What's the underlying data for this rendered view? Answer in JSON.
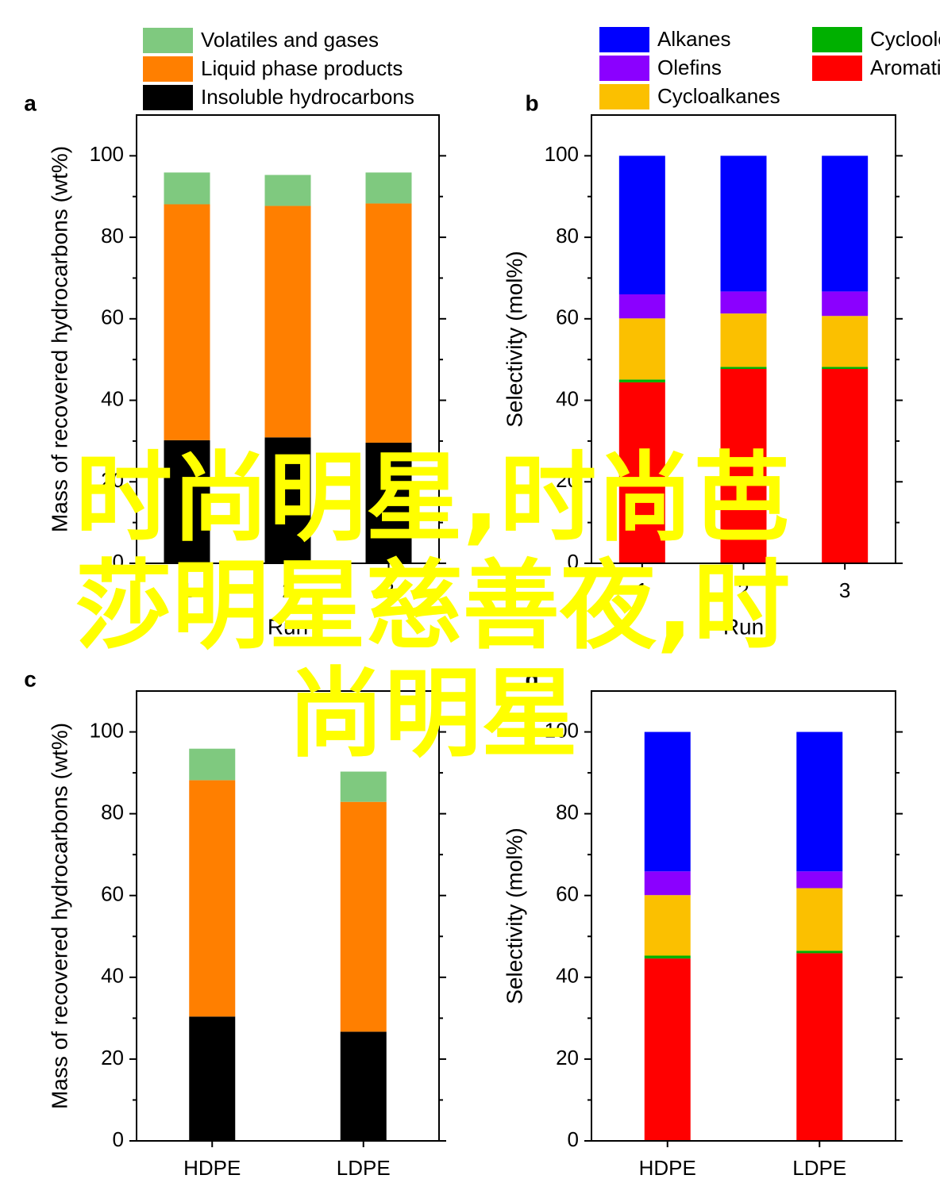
{
  "chart_data": [
    {
      "type": "bar",
      "stacked": true,
      "panel_label": "a",
      "ylabel": "Mass of recovered hydrocarbons (wt%)",
      "xlabel": "Run",
      "categories": [
        "1",
        "2",
        "3"
      ],
      "ylim": [
        0,
        110
      ],
      "yticks": [
        0,
        20,
        40,
        60,
        80,
        100
      ],
      "yminor": [
        10,
        30,
        50,
        70,
        90
      ],
      "legend": "top-left",
      "series": [
        {
          "name": "Insoluble hydrocarbons",
          "color": "#000000",
          "values": [
            30.2,
            30.9,
            29.6
          ]
        },
        {
          "name": "Liquid phase products",
          "color": "#ff7f00",
          "values": [
            57.9,
            56.8,
            58.7
          ]
        },
        {
          "name": "Volatiles and gases",
          "color": "#7fc97f",
          "values": [
            7.8,
            7.6,
            7.6
          ]
        }
      ]
    },
    {
      "type": "bar",
      "stacked": true,
      "panel_label": "b",
      "ylabel": "Selectivity (mol%)",
      "xlabel": "Run",
      "categories": [
        "1",
        "2",
        "3"
      ],
      "ylim": [
        0,
        110
      ],
      "yticks": [
        0,
        20,
        40,
        60,
        80,
        100
      ],
      "yminor": [
        10,
        30,
        50,
        70,
        90
      ],
      "legend": "top",
      "series": [
        {
          "name": "Aromatics",
          "color": "#ff0000",
          "values": [
            44.4,
            47.7,
            47.7
          ]
        },
        {
          "name": "Cycloolefins",
          "color": "#00b000",
          "values": [
            0.7,
            0.5,
            0.5
          ]
        },
        {
          "name": "Cycloalkanes",
          "color": "#fbc000",
          "values": [
            15.0,
            13.1,
            12.5
          ]
        },
        {
          "name": "Olefins",
          "color": "#8b00ff",
          "values": [
            5.9,
            5.4,
            6.0
          ]
        },
        {
          "name": "Alkanes",
          "color": "#0000ff",
          "values": [
            34.0,
            33.3,
            33.3
          ]
        }
      ]
    },
    {
      "type": "bar",
      "stacked": true,
      "panel_label": "c",
      "ylabel": "Mass of recovered hydrocarbons (wt%)",
      "categories": [
        "HDPE",
        "LDPE"
      ],
      "ylim": [
        0,
        110
      ],
      "yticks": [
        0,
        20,
        40,
        60,
        80,
        100
      ],
      "yminor": [
        10,
        30,
        50,
        70,
        90
      ],
      "series": [
        {
          "color": "#000000",
          "values": [
            30.4,
            26.7
          ]
        },
        {
          "color": "#ff7f00",
          "values": [
            57.8,
            56.2
          ]
        },
        {
          "color": "#7fc97f",
          "values": [
            7.7,
            7.4
          ]
        }
      ]
    },
    {
      "type": "bar",
      "stacked": true,
      "panel_label": "d",
      "ylabel": "Selectivity (mol%)",
      "categories": [
        "HDPE",
        "LDPE"
      ],
      "ylim": [
        0,
        110
      ],
      "yticks": [
        0,
        20,
        40,
        60,
        80,
        100
      ],
      "yminor": [
        10,
        30,
        50,
        70,
        90
      ],
      "series": [
        {
          "color": "#ff0000",
          "values": [
            44.6,
            45.9
          ]
        },
        {
          "color": "#00b000",
          "values": [
            0.7,
            0.6
          ]
        },
        {
          "color": "#fbc000",
          "values": [
            14.8,
            15.3
          ]
        },
        {
          "color": "#8b00ff",
          "values": [
            5.8,
            4.1
          ]
        },
        {
          "color": "#0000ff",
          "values": [
            34.1,
            34.1
          ]
        }
      ]
    }
  ],
  "overlay": "时尚明星,时尚芭莎明星慈善夜,时尚明星"
}
